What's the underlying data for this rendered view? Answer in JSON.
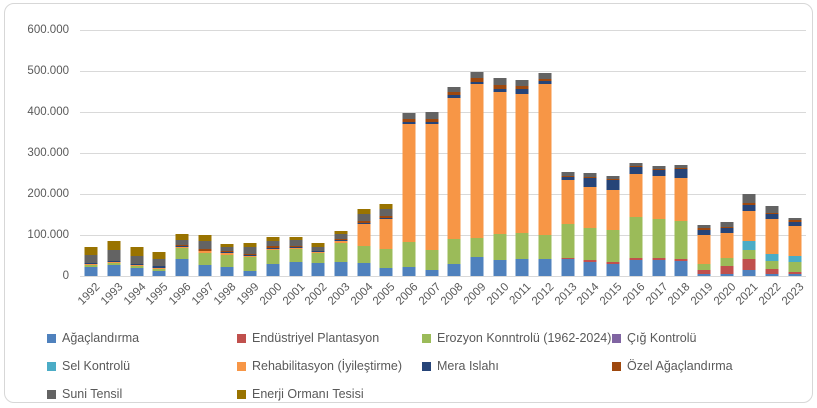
{
  "chart_data": {
    "type": "bar",
    "stacked": true,
    "title": "",
    "xlabel": "",
    "ylabel": "",
    "ylim": [
      0,
      600000
    ],
    "grid": true,
    "legend_position": "bottom",
    "y_ticks": [
      "600.000",
      "500.000",
      "400.000",
      "300.000",
      "200.000",
      "100.000",
      "0"
    ],
    "categories": [
      "1992",
      "1993",
      "1994",
      "1995",
      "1996",
      "1997",
      "1998",
      "1999",
      "2000",
      "2001",
      "2002",
      "2003",
      "2004",
      "2005",
      "2006",
      "2007",
      "2008",
      "2009",
      "2010",
      "2011",
      "2012",
      "2013",
      "2014",
      "2015",
      "2016",
      "2017",
      "2018",
      "2019",
      "2020",
      "2021",
      "2022",
      "2023"
    ],
    "series": [
      {
        "name": "Ağaçlandırma",
        "color": "#4F81BD",
        "values": [
          22000,
          27000,
          20000,
          12000,
          41000,
          27000,
          22000,
          12000,
          29000,
          34000,
          32000,
          34000,
          32000,
          20000,
          22000,
          15000,
          30000,
          46000,
          40000,
          42000,
          42000,
          41000,
          34000,
          29000,
          39000,
          40000,
          36000,
          5000,
          5000,
          14000,
          6000,
          5000
        ]
      },
      {
        "name": "Endüstriyel Plantasyon",
        "color": "#C0504D",
        "values": [
          0,
          0,
          0,
          0,
          0,
          0,
          0,
          0,
          0,
          0,
          0,
          0,
          0,
          0,
          0,
          0,
          0,
          0,
          0,
          0,
          0,
          4000,
          5000,
          5000,
          5000,
          5000,
          5000,
          10000,
          20000,
          28000,
          10000,
          4000
        ]
      },
      {
        "name": "Erozyon Konntrolü (1962-2024)",
        "color": "#9BBB59",
        "values": [
          5000,
          5000,
          5000,
          5000,
          27000,
          29000,
          29000,
          34000,
          34000,
          31000,
          24000,
          46000,
          41000,
          46000,
          61000,
          48000,
          60000,
          47000,
          62000,
          63000,
          58000,
          82000,
          78000,
          78000,
          100000,
          95000,
          94000,
          15000,
          20000,
          21000,
          21000,
          26000
        ]
      },
      {
        "name": "Çığ Kontrolü",
        "color": "#8064A2",
        "values": [
          0,
          0,
          0,
          0,
          0,
          0,
          0,
          0,
          0,
          0,
          0,
          0,
          0,
          0,
          0,
          0,
          0,
          0,
          0,
          0,
          0,
          0,
          0,
          0,
          0,
          0,
          0,
          0,
          0,
          0,
          0,
          0
        ]
      },
      {
        "name": "Sel Kontrolü",
        "color": "#4BACC6",
        "values": [
          0,
          0,
          0,
          0,
          0,
          0,
          0,
          0,
          0,
          0,
          0,
          0,
          0,
          0,
          0,
          0,
          0,
          0,
          0,
          0,
          0,
          0,
          0,
          0,
          0,
          0,
          0,
          0,
          0,
          23000,
          16000,
          13000
        ]
      },
      {
        "name": "Rehabilitasyon (İyileştirme)",
        "color": "#F79646",
        "values": [
          2000,
          2000,
          2000,
          2000,
          3000,
          4000,
          5000,
          4000,
          4000,
          3000,
          2000,
          5000,
          54000,
          73000,
          288000,
          308000,
          345000,
          375000,
          348000,
          340000,
          368000,
          107000,
          100000,
          98000,
          105000,
          105000,
          105000,
          71000,
          59000,
          72000,
          85000,
          73000
        ]
      },
      {
        "name": "Mera Islahı",
        "color": "#264478",
        "values": [
          2000,
          2000,
          2000,
          5000,
          2000,
          2000,
          2000,
          2000,
          2000,
          2000,
          2000,
          2000,
          3000,
          3000,
          5000,
          5000,
          6000,
          6000,
          7000,
          10000,
          8000,
          8000,
          22000,
          24000,
          17000,
          13000,
          21000,
          12000,
          12000,
          16000,
          13000,
          12000
        ]
      },
      {
        "name": "Özel Ağaçlandırma",
        "color": "#9E480E",
        "values": [
          0,
          0,
          0,
          0,
          2000,
          4000,
          3000,
          3000,
          4000,
          4000,
          2000,
          4000,
          4000,
          4000,
          8000,
          8000,
          8000,
          8000,
          10000,
          8000,
          5000,
          3000,
          3000,
          3000,
          2000,
          2000,
          3000,
          3000,
          4000,
          5000,
          3000,
          3000
        ]
      },
      {
        "name": "Suni Tensil",
        "color": "#636363",
        "values": [
          20000,
          27000,
          19000,
          17000,
          14000,
          19000,
          9000,
          15000,
          12000,
          13000,
          8000,
          11000,
          17000,
          17000,
          14000,
          15000,
          12000,
          16000,
          16000,
          15000,
          15000,
          10000,
          9000,
          7000,
          8000,
          8000,
          8000,
          8000,
          11000,
          21000,
          17000,
          6000
        ]
      },
      {
        "name": "Enerji Ormanı Tesisi",
        "color": "#997300",
        "values": [
          19000,
          22000,
          22000,
          17000,
          14000,
          15000,
          8000,
          10000,
          10000,
          8000,
          10000,
          8000,
          12000,
          13000,
          0,
          0,
          0,
          0,
          0,
          0,
          0,
          0,
          0,
          0,
          0,
          0,
          0,
          0,
          0,
          0,
          0,
          0
        ]
      }
    ]
  },
  "colors": {
    "gridline": "#D9D9D9",
    "axis_text": "#595959",
    "legend_text": "#595959",
    "frame_border": "#D7D7D7",
    "background": "#FFFFFF"
  }
}
